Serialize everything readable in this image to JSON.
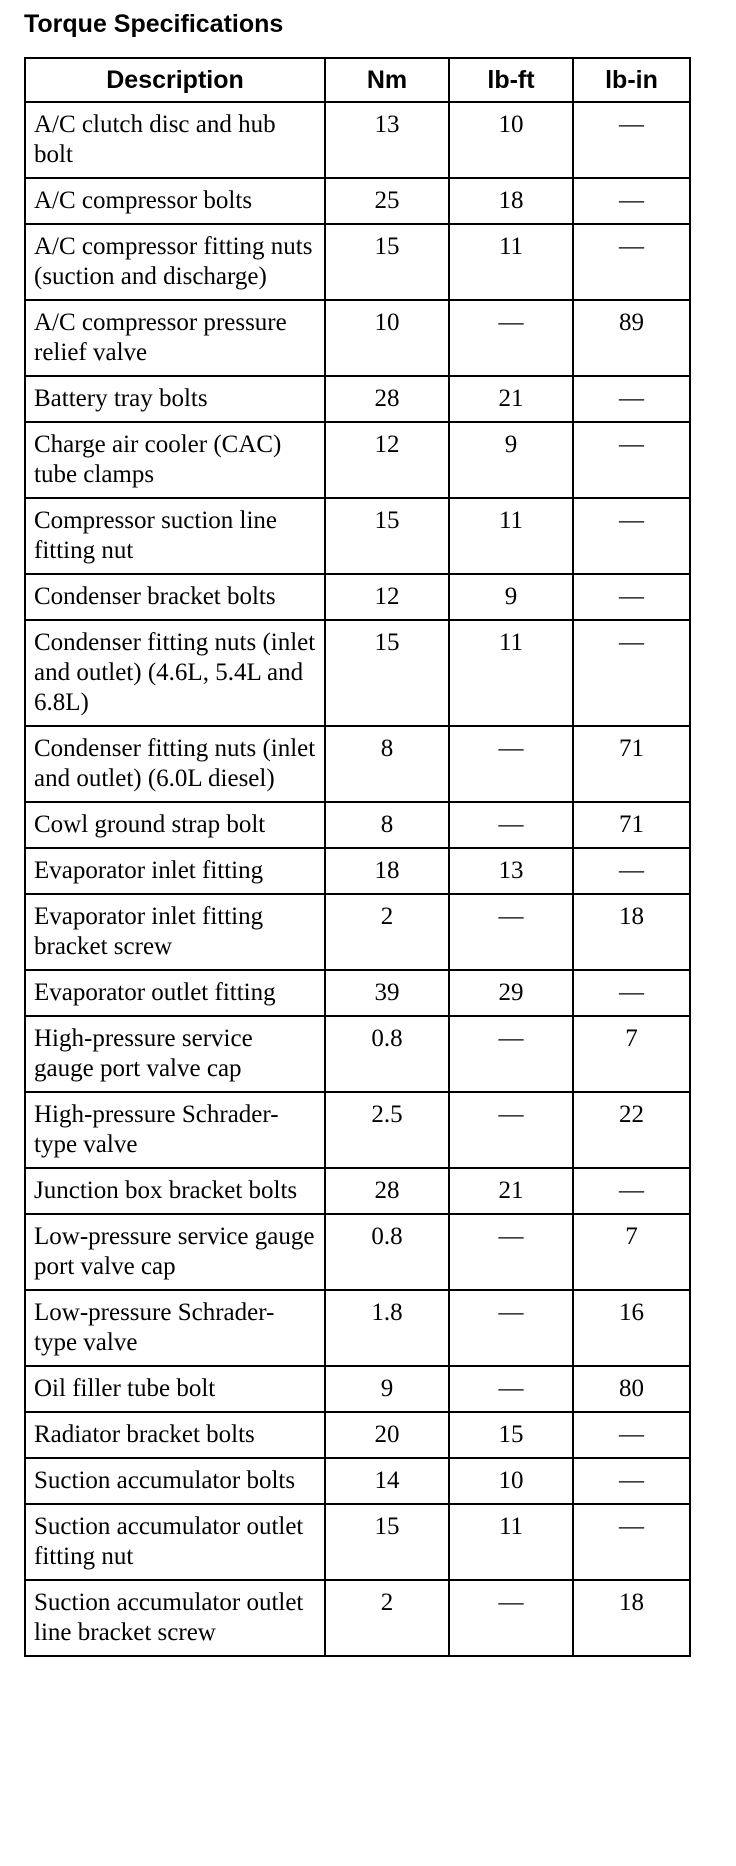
{
  "title": "Torque Specifications",
  "table": {
    "header": [
      "Description",
      "Nm",
      "lb-ft",
      "lb-in"
    ],
    "rows": [
      [
        "A/C clutch disc and hub bolt",
        13,
        10,
        "—"
      ],
      [
        "A/C compressor bolts",
        25,
        18,
        "—"
      ],
      [
        "A/C compressor fitting nuts (suction and discharge)",
        15,
        11,
        "—"
      ],
      [
        "A/C compressor pressure relief valve",
        10,
        "—",
        89
      ],
      [
        "Battery tray bolts",
        28,
        21,
        "—"
      ],
      [
        "Charge air cooler (CAC) tube clamps",
        12,
        9,
        "—"
      ],
      [
        "Compressor suction line fitting nut",
        15,
        11,
        "—"
      ],
      [
        "Condenser bracket bolts",
        12,
        9,
        "—"
      ],
      [
        "Condenser fitting nuts (inlet and outlet) (4.6L, 5.4L and 6.8L)",
        15,
        11,
        "—"
      ],
      [
        "Condenser fitting nuts (inlet and outlet) (6.0L diesel)",
        8,
        "—",
        71
      ],
      [
        "Cowl ground strap bolt",
        8,
        "—",
        71
      ],
      [
        "Evaporator inlet fitting",
        18,
        13,
        "—"
      ],
      [
        "Evaporator inlet fitting bracket screw",
        2,
        "—",
        18
      ],
      [
        "Evaporator outlet fitting",
        39,
        29,
        "—"
      ],
      [
        "High-pressure service gauge port valve cap",
        0.8,
        "—",
        7
      ],
      [
        "High-pressure Schrader-type valve",
        2.5,
        "—",
        22
      ],
      [
        "Junction box bracket bolts",
        28,
        21,
        "—"
      ],
      [
        "Low-pressure service gauge port valve cap",
        0.8,
        "—",
        7
      ],
      [
        "Low-pressure Schrader-type valve",
        1.8,
        "—",
        16
      ],
      [
        "Oil filler tube bolt",
        9,
        "—",
        80
      ],
      [
        "Radiator bracket bolts",
        20,
        15,
        "—"
      ],
      [
        "Suction accumulator bolts",
        14,
        10,
        "—"
      ],
      [
        "Suction accumulator outlet fitting nut",
        15,
        11,
        "—"
      ],
      [
        "Suction accumulator outlet line bracket screw",
        2,
        "—",
        18
      ]
    ]
  }
}
